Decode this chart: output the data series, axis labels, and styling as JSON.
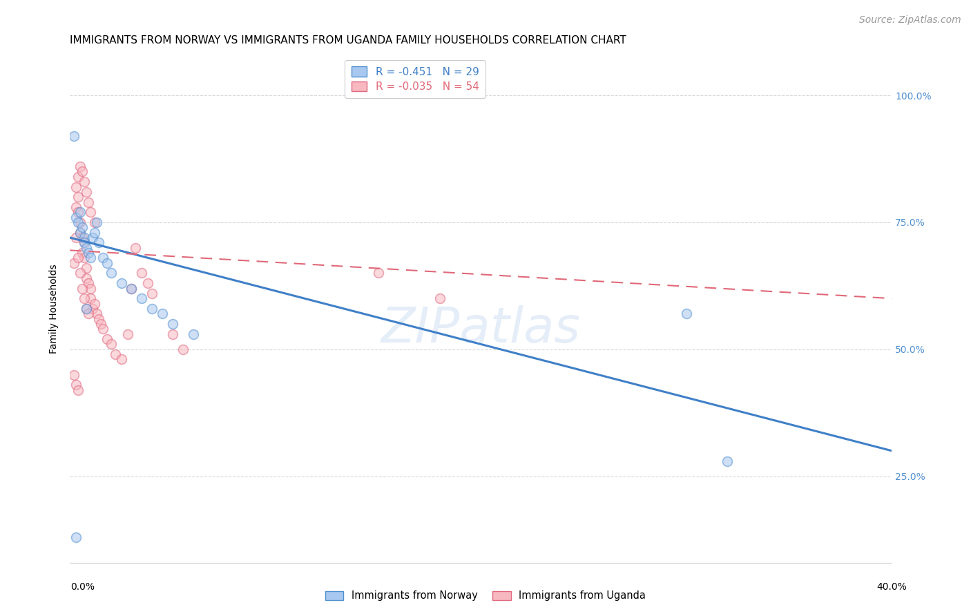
{
  "title": "IMMIGRANTS FROM NORWAY VS IMMIGRANTS FROM UGANDA FAMILY HOUSEHOLDS CORRELATION CHART",
  "source": "Source: ZipAtlas.com",
  "ylabel": "Family Households",
  "ytick_labels": [
    "100.0%",
    "75.0%",
    "50.0%",
    "25.0%"
  ],
  "ytick_values": [
    1.0,
    0.75,
    0.5,
    0.25
  ],
  "xlim": [
    0.0,
    0.4
  ],
  "ylim": [
    0.08,
    1.08
  ],
  "norway_color": "#a8c8f0",
  "uganda_color": "#f8b8c0",
  "norway_edge_color": "#5090d0",
  "uganda_edge_color": "#e06880",
  "norway_line_color": "#4080c8",
  "uganda_line_color": "#e06878",
  "norway_x": [
    0.002,
    0.003,
    0.004,
    0.005,
    0.005,
    0.006,
    0.007,
    0.007,
    0.008,
    0.009,
    0.01,
    0.011,
    0.012,
    0.013,
    0.014,
    0.016,
    0.018,
    0.02,
    0.025,
    0.03,
    0.035,
    0.04,
    0.045,
    0.05,
    0.06,
    0.003,
    0.008,
    0.3,
    0.32
  ],
  "norway_y": [
    0.92,
    0.76,
    0.75,
    0.73,
    0.77,
    0.74,
    0.72,
    0.71,
    0.7,
    0.69,
    0.68,
    0.72,
    0.73,
    0.75,
    0.71,
    0.68,
    0.67,
    0.65,
    0.63,
    0.62,
    0.6,
    0.58,
    0.57,
    0.55,
    0.53,
    0.13,
    0.58,
    0.57,
    0.28
  ],
  "uganda_x": [
    0.002,
    0.003,
    0.003,
    0.004,
    0.004,
    0.005,
    0.005,
    0.006,
    0.006,
    0.007,
    0.007,
    0.008,
    0.008,
    0.009,
    0.01,
    0.01,
    0.011,
    0.012,
    0.013,
    0.014,
    0.015,
    0.016,
    0.018,
    0.02,
    0.022,
    0.025,
    0.028,
    0.03,
    0.032,
    0.035,
    0.038,
    0.04,
    0.004,
    0.005,
    0.006,
    0.007,
    0.008,
    0.009,
    0.01,
    0.012,
    0.003,
    0.004,
    0.005,
    0.006,
    0.007,
    0.008,
    0.009,
    0.002,
    0.003,
    0.004,
    0.05,
    0.055,
    0.15,
    0.18
  ],
  "uganda_y": [
    0.67,
    0.82,
    0.78,
    0.8,
    0.77,
    0.75,
    0.73,
    0.72,
    0.69,
    0.71,
    0.68,
    0.66,
    0.64,
    0.63,
    0.62,
    0.6,
    0.58,
    0.59,
    0.57,
    0.56,
    0.55,
    0.54,
    0.52,
    0.51,
    0.49,
    0.48,
    0.53,
    0.62,
    0.7,
    0.65,
    0.63,
    0.61,
    0.84,
    0.86,
    0.85,
    0.83,
    0.81,
    0.79,
    0.77,
    0.75,
    0.72,
    0.68,
    0.65,
    0.62,
    0.6,
    0.58,
    0.57,
    0.45,
    0.43,
    0.42,
    0.53,
    0.5,
    0.65,
    0.6
  ],
  "norway_trend_x": [
    0.0,
    0.4
  ],
  "norway_trend_y": [
    0.72,
    0.3
  ],
  "uganda_trend_x": [
    0.0,
    0.4
  ],
  "uganda_trend_y": [
    0.695,
    0.6
  ],
  "legend_norway_label": "R = -0.451   N = 29",
  "legend_uganda_label": "R = -0.035   N = 54",
  "background_color": "#ffffff",
  "grid_color": "#d8d8d8",
  "title_fontsize": 11,
  "axis_label_fontsize": 10,
  "tick_fontsize": 10,
  "source_fontsize": 10,
  "marker_size": 100,
  "marker_alpha": 0.55,
  "marker_linewidth": 1.2
}
